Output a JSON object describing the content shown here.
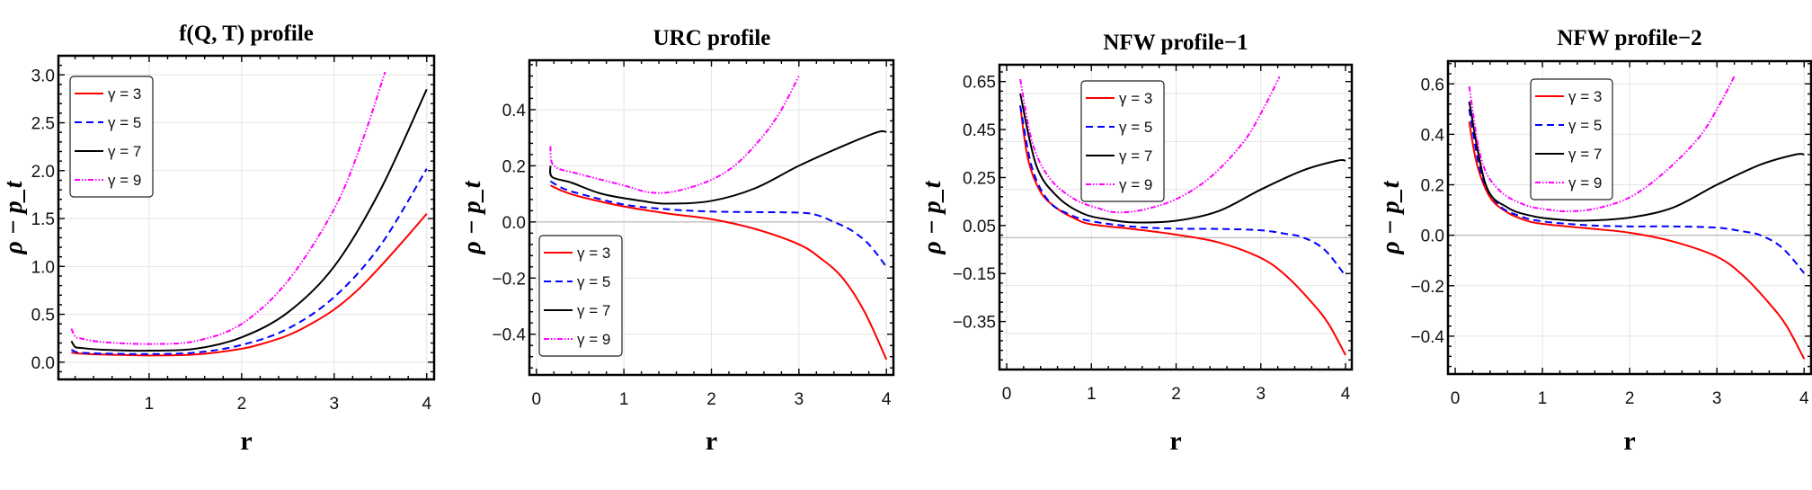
{
  "series_style": [
    {
      "name": "γ = 3",
      "color": "#ff0000",
      "dash": "solid"
    },
    {
      "name": "γ = 5",
      "color": "#0000ff",
      "dash": "dashed"
    },
    {
      "name": "γ = 7",
      "color": "#000000",
      "dash": "solid"
    },
    {
      "name": "γ = 9",
      "color": "#ff00ff",
      "dash": "dot-dash"
    }
  ],
  "chart_data": [
    {
      "type": "line",
      "title": "f(Q, T) profile",
      "xlabel": "r",
      "ylabel": "ρ − p_t",
      "ylabel_sub": "t",
      "xlim": [
        0.02,
        4.08
      ],
      "ylim": [
        -0.18,
        3.2
      ],
      "xticks": [
        1,
        2,
        3,
        4
      ],
      "xtick_labels": [
        "1",
        "2",
        "3",
        "4"
      ],
      "yticks": [
        0,
        0.5,
        1,
        1.5,
        2,
        2.5,
        3
      ],
      "ytick_labels": [
        "0.0",
        "0.5",
        "1.0",
        "1.5",
        "2.0",
        "2.5",
        "3.0"
      ],
      "y_gridlines": [
        0,
        0.5,
        1,
        1.5,
        2,
        2.5,
        3
      ],
      "grid": true,
      "legend": "top-left",
      "series": [
        {
          "name": "γ = 3",
          "x": [
            0.16,
            0.25,
            0.5,
            1,
            1.5,
            2,
            2.25,
            2.5,
            2.75,
            3,
            3.25,
            3.5,
            3.75,
            4
          ],
          "y": [
            0.1,
            0.09,
            0.08,
            0.07,
            0.08,
            0.14,
            0.2,
            0.28,
            0.4,
            0.55,
            0.75,
            1.0,
            1.27,
            1.55
          ]
        },
        {
          "name": "γ = 5",
          "x": [
            0.16,
            0.2,
            0.25,
            0.5,
            1,
            1.5,
            2,
            2.5,
            3,
            3.5,
            4
          ],
          "y": [
            0.13,
            0.11,
            0.1,
            0.09,
            0.085,
            0.1,
            0.18,
            0.35,
            0.68,
            1.22,
            2.02
          ]
        },
        {
          "name": "γ = 7",
          "x": [
            0.16,
            0.2,
            0.25,
            0.5,
            1,
            1.5,
            2,
            2.5,
            3,
            3.5,
            4
          ],
          "y": [
            0.22,
            0.16,
            0.15,
            0.13,
            0.12,
            0.14,
            0.26,
            0.52,
            1.0,
            1.8,
            2.85
          ]
        },
        {
          "name": "γ = 9",
          "x": [
            0.16,
            0.2,
            0.25,
            0.5,
            1,
            1.5,
            2,
            2.5,
            3,
            3.3,
            3.55
          ],
          "y": [
            0.35,
            0.27,
            0.25,
            0.21,
            0.19,
            0.22,
            0.4,
            0.85,
            1.6,
            2.3,
            3.03
          ]
        }
      ]
    },
    {
      "type": "line",
      "title": "URC profile",
      "xlabel": "r",
      "ylabel": "ρ − p_t",
      "ylabel_sub": "t",
      "xlim": [
        -0.08,
        4.08
      ],
      "ylim": [
        -0.545,
        0.576
      ],
      "xticks": [
        0,
        1,
        2,
        3,
        4
      ],
      "xtick_labels": [
        "0",
        "1",
        "2",
        "3",
        "4"
      ],
      "yticks": [
        -0.4,
        -0.2,
        0,
        0.2,
        0.4
      ],
      "ytick_labels": [
        "−0.4",
        "−0.2",
        "0.0",
        "0.2",
        "0.4"
      ],
      "y_gridlines": [
        -0.4,
        -0.2,
        0,
        0.2,
        0.4
      ],
      "grid": true,
      "legend": "bottom-left",
      "series": [
        {
          "name": "γ = 3",
          "x": [
            0.16,
            0.3,
            0.5,
            1,
            1.5,
            2,
            2.5,
            3,
            3.25,
            3.5,
            3.75,
            4
          ],
          "y": [
            0.13,
            0.11,
            0.09,
            0.055,
            0.03,
            0.01,
            -0.025,
            -0.08,
            -0.13,
            -0.2,
            -0.32,
            -0.49
          ]
        },
        {
          "name": "γ = 5",
          "x": [
            0.16,
            0.3,
            0.5,
            1,
            1.5,
            2,
            2.5,
            3,
            3.2,
            3.4,
            3.6,
            3.8,
            4
          ],
          "y": [
            0.145,
            0.12,
            0.1,
            0.062,
            0.045,
            0.037,
            0.035,
            0.033,
            0.025,
            0.0,
            -0.03,
            -0.08,
            -0.16
          ]
        },
        {
          "name": "γ = 7",
          "x": [
            0.16,
            0.18,
            0.4,
            0.75,
            1.2,
            1.5,
            2,
            2.5,
            3,
            3.5,
            3.9,
            4
          ],
          "y": [
            0.2,
            0.16,
            0.14,
            0.1,
            0.075,
            0.065,
            0.075,
            0.12,
            0.2,
            0.27,
            0.32,
            0.32
          ]
        },
        {
          "name": "γ = 9",
          "x": [
            0.16,
            0.2,
            0.5,
            1,
            1.3,
            1.6,
            2,
            2.3,
            2.6,
            2.8,
            3
          ],
          "y": [
            0.27,
            0.2,
            0.17,
            0.13,
            0.105,
            0.11,
            0.15,
            0.21,
            0.31,
            0.4,
            0.52
          ]
        }
      ]
    },
    {
      "type": "line",
      "title": "NFW profile−1",
      "xlabel": "r",
      "ylabel": "ρ − p_t",
      "ylabel_sub": "t",
      "xlim": [
        -0.085,
        4.074
      ],
      "ylim": [
        -0.55,
        0.72
      ],
      "xticks": [
        0,
        1,
        2,
        3,
        4
      ],
      "xtick_labels": [
        "0",
        "1",
        "2",
        "3",
        "4"
      ],
      "yticks": [
        -0.35,
        -0.15,
        0.05,
        0.25,
        0.45,
        0.65
      ],
      "ytick_labels": [
        "−0.35",
        "−0.15",
        "0.05",
        "0.25",
        "0.45",
        "0.65"
      ],
      "y_gridlines": [
        -0.4,
        -0.2,
        0,
        0.2,
        0.4,
        0.6
      ],
      "grid": true,
      "legend": "top-center",
      "series": [
        {
          "name": "γ = 3",
          "x": [
            0.16,
            0.25,
            0.4,
            0.6,
            0.8,
            1,
            1.5,
            2,
            2.5,
            3,
            3.3,
            3.6,
            3.8,
            4
          ],
          "y": [
            0.55,
            0.33,
            0.19,
            0.12,
            0.08,
            0.055,
            0.035,
            0.012,
            -0.02,
            -0.085,
            -0.16,
            -0.27,
            -0.36,
            -0.49
          ]
        },
        {
          "name": "γ = 5",
          "x": [
            0.16,
            0.3,
            0.5,
            0.75,
            1,
            1.5,
            2,
            2.5,
            3,
            3.3,
            3.5,
            3.75,
            4
          ],
          "y": [
            0.55,
            0.29,
            0.15,
            0.095,
            0.068,
            0.045,
            0.037,
            0.036,
            0.03,
            0.015,
            0.0,
            -0.05,
            -0.16
          ]
        },
        {
          "name": "γ = 7",
          "x": [
            0.16,
            0.35,
            0.6,
            0.9,
            1.2,
            1.5,
            2,
            2.5,
            3,
            3.5,
            3.9,
            4
          ],
          "y": [
            0.6,
            0.3,
            0.17,
            0.1,
            0.075,
            0.063,
            0.07,
            0.11,
            0.2,
            0.28,
            0.32,
            0.32
          ]
        },
        {
          "name": "γ = 9",
          "x": [
            0.16,
            0.3,
            0.5,
            0.8,
            1.1,
            1.3,
            1.6,
            2,
            2.4,
            2.8,
            3.05,
            3.22
          ],
          "y": [
            0.66,
            0.4,
            0.25,
            0.16,
            0.12,
            0.105,
            0.115,
            0.16,
            0.25,
            0.4,
            0.55,
            0.67
          ]
        }
      ]
    },
    {
      "type": "line",
      "title": "NFW profile−2",
      "xlabel": "r",
      "ylabel": "ρ − p_t",
      "ylabel_sub": "t",
      "xlim": [
        -0.083,
        4.08
      ],
      "ylim": [
        -0.55,
        0.69
      ],
      "xticks": [
        0,
        1,
        2,
        3,
        4
      ],
      "xtick_labels": [
        "0",
        "1",
        "2",
        "3",
        "4"
      ],
      "yticks": [
        -0.4,
        -0.2,
        0,
        0.2,
        0.4,
        0.6
      ],
      "ytick_labels": [
        "−0.4",
        "−0.2",
        "0.0",
        "0.2",
        "0.4",
        "0.6"
      ],
      "y_gridlines": [
        -0.4,
        -0.2,
        0,
        0.2,
        0.4,
        0.6
      ],
      "grid": true,
      "legend": "top-center",
      "series": [
        {
          "name": "γ = 3",
          "x": [
            0.16,
            0.25,
            0.4,
            0.6,
            0.8,
            1,
            1.5,
            2,
            2.5,
            3,
            3.3,
            3.6,
            3.8,
            4
          ],
          "y": [
            0.45,
            0.28,
            0.15,
            0.09,
            0.06,
            0.045,
            0.028,
            0.01,
            -0.025,
            -0.085,
            -0.16,
            -0.27,
            -0.36,
            -0.49
          ]
        },
        {
          "name": "γ = 5",
          "x": [
            0.16,
            0.3,
            0.5,
            0.75,
            1,
            1.5,
            2,
            2.5,
            3,
            3.3,
            3.5,
            3.75,
            4
          ],
          "y": [
            0.5,
            0.24,
            0.12,
            0.075,
            0.055,
            0.04,
            0.035,
            0.035,
            0.03,
            0.015,
            0.0,
            -0.05,
            -0.15
          ]
        },
        {
          "name": "γ = 7",
          "x": [
            0.16,
            0.35,
            0.6,
            0.9,
            1.2,
            1.5,
            2,
            2.5,
            3,
            3.5,
            3.9,
            4
          ],
          "y": [
            0.53,
            0.2,
            0.11,
            0.075,
            0.062,
            0.058,
            0.07,
            0.11,
            0.2,
            0.28,
            0.32,
            0.32
          ]
        },
        {
          "name": "γ = 9",
          "x": [
            0.16,
            0.3,
            0.5,
            0.8,
            1.1,
            1.3,
            1.6,
            2,
            2.4,
            2.8,
            3.05,
            3.2
          ],
          "y": [
            0.59,
            0.3,
            0.18,
            0.12,
            0.1,
            0.095,
            0.105,
            0.15,
            0.25,
            0.39,
            0.53,
            0.63
          ]
        }
      ]
    }
  ]
}
